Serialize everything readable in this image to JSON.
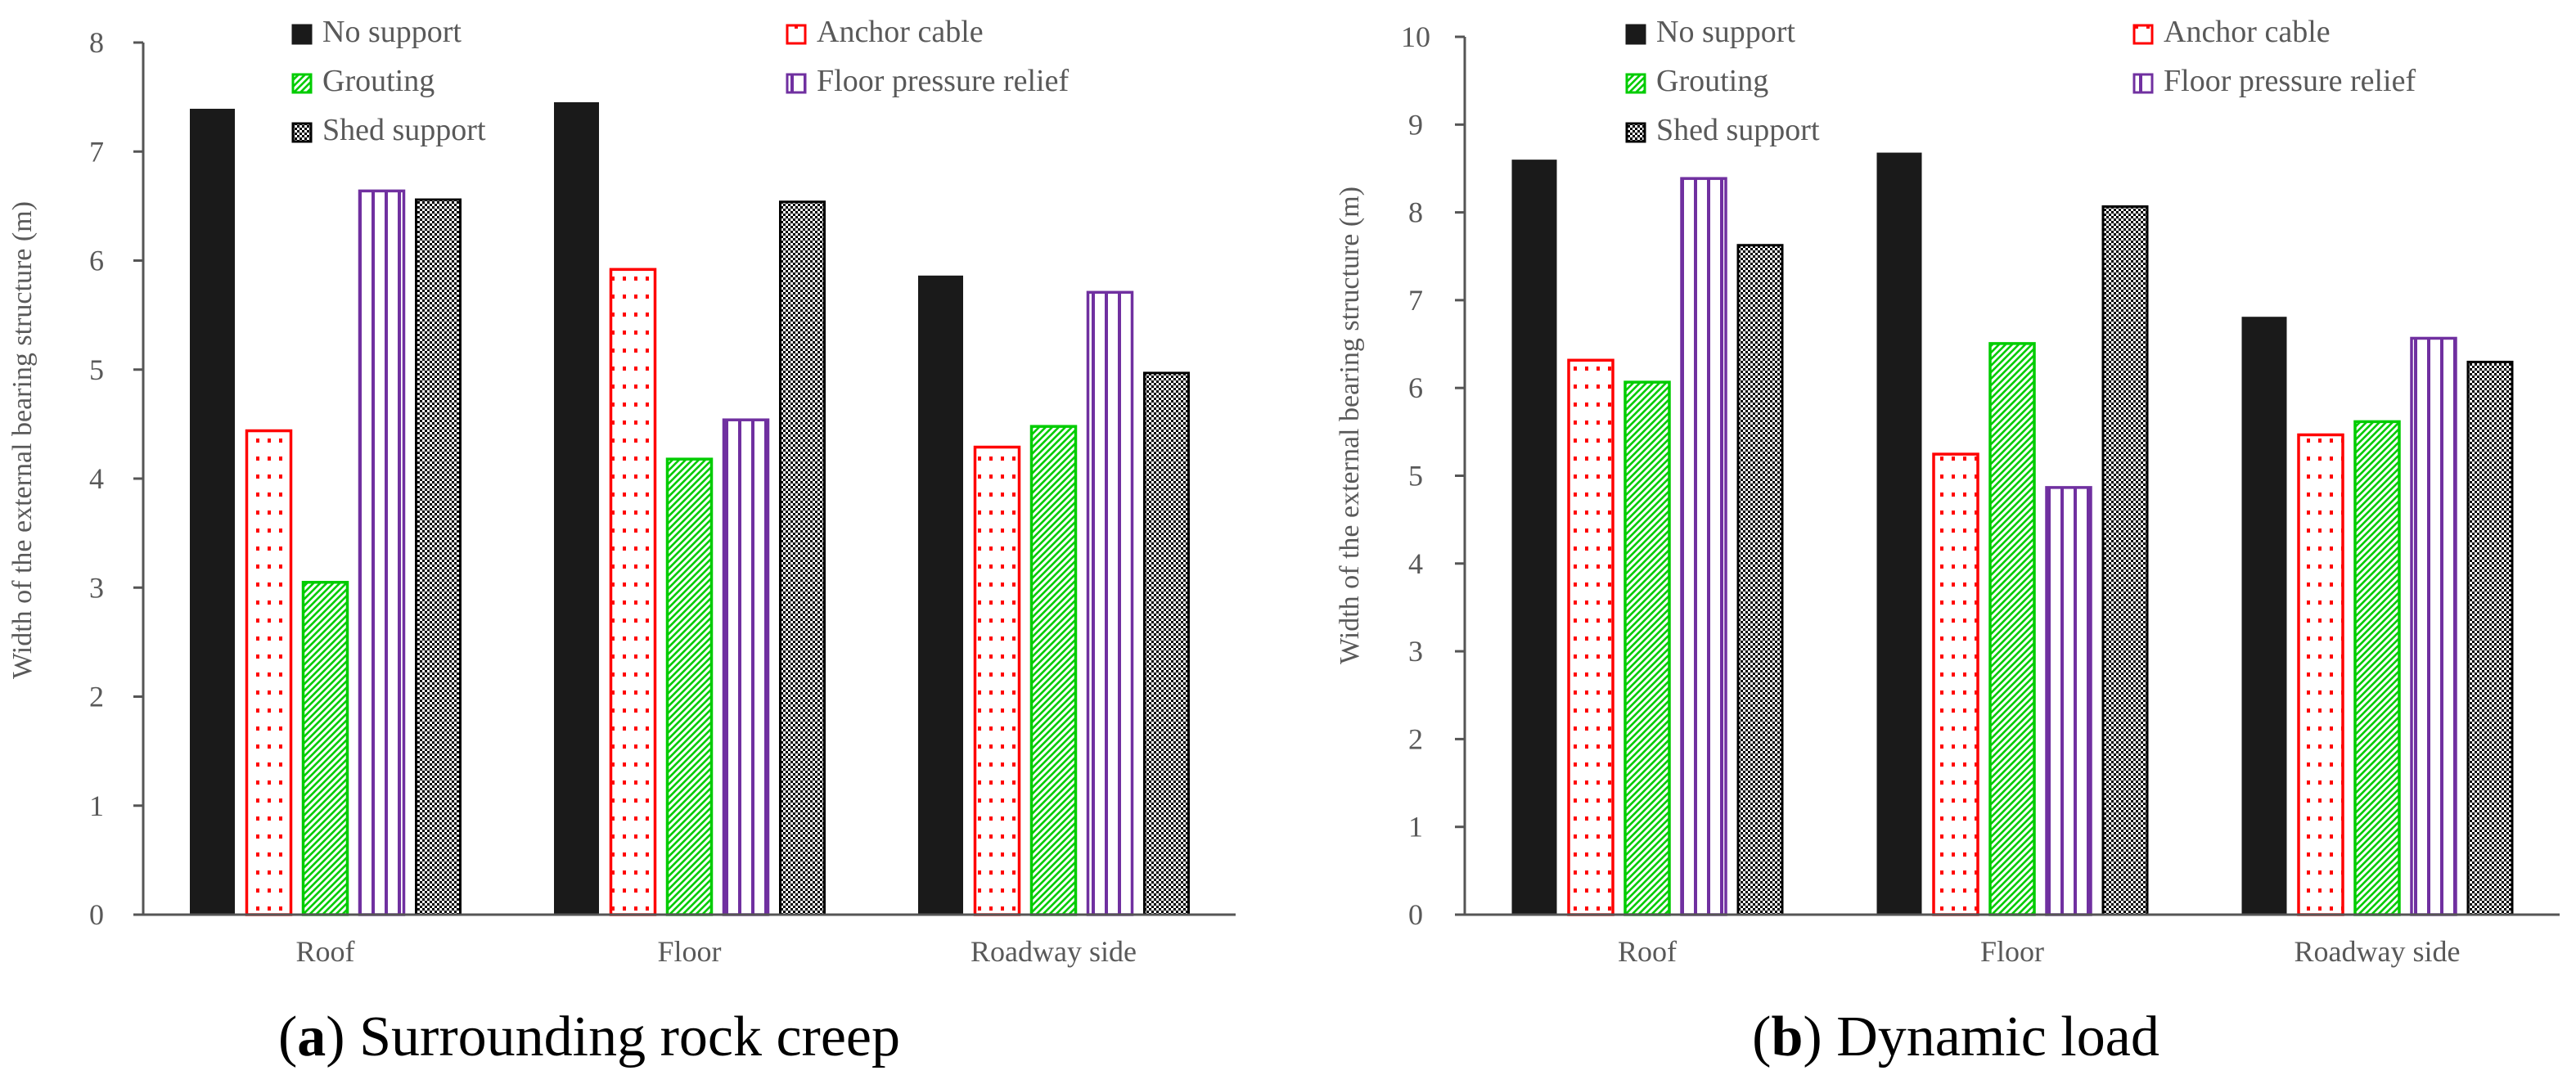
{
  "chart_data": [
    {
      "type": "bar",
      "caption_letter": "a",
      "caption_text": ") Surrounding rock creep",
      "categories": [
        "Roof",
        "Floor",
        "Roadway side"
      ],
      "ylabel": "Width of the external bearing structure (m)",
      "xlabel": "",
      "ylim": [
        0,
        8
      ],
      "yticks": [
        "0",
        "1",
        "2",
        "3",
        "4",
        "5",
        "6",
        "7",
        "8"
      ],
      "grid": false,
      "legend_position": "top",
      "series": [
        {
          "name": "No support",
          "values": [
            7.4,
            7.46,
            5.87
          ]
        },
        {
          "name": "Anchor cable",
          "values": [
            4.45,
            5.93,
            4.3
          ]
        },
        {
          "name": "Grouting",
          "values": [
            3.06,
            4.19,
            4.49
          ]
        },
        {
          "name": "Floor pressure relief",
          "values": [
            6.65,
            4.55,
            5.72
          ]
        },
        {
          "name": "Shed support",
          "values": [
            6.57,
            6.55,
            4.98
          ]
        }
      ]
    },
    {
      "type": "bar",
      "caption_letter": "b",
      "caption_text": ") Dynamic load",
      "categories": [
        "Roof",
        "Floor",
        "Roadway side"
      ],
      "ylabel": "Width of the external bearing structure (m)",
      "xlabel": "",
      "ylim": [
        0,
        10
      ],
      "yticks": [
        "0",
        "1",
        "2",
        "3",
        "4",
        "5",
        "6",
        "7",
        "8",
        "9",
        "10"
      ],
      "grid": false,
      "legend_position": "top",
      "series": [
        {
          "name": "No support",
          "values": [
            8.61,
            8.69,
            6.82
          ]
        },
        {
          "name": "Anchor cable",
          "values": [
            6.33,
            5.26,
            5.48
          ]
        },
        {
          "name": "Grouting",
          "values": [
            6.08,
            6.52,
            5.63
          ]
        },
        {
          "name": "Floor pressure relief",
          "values": [
            8.4,
            4.88,
            6.58
          ]
        },
        {
          "name": "Shed support",
          "values": [
            7.64,
            8.08,
            6.31
          ]
        }
      ]
    }
  ],
  "series_styles": [
    {
      "pattern": "solid",
      "color": "#1a1a1a"
    },
    {
      "pattern": "dots",
      "color": "#ff0000"
    },
    {
      "pattern": "diagonal",
      "color": "#00cc00"
    },
    {
      "pattern": "vertical",
      "color": "#7030a0"
    },
    {
      "pattern": "checker",
      "color": "#000000"
    }
  ]
}
